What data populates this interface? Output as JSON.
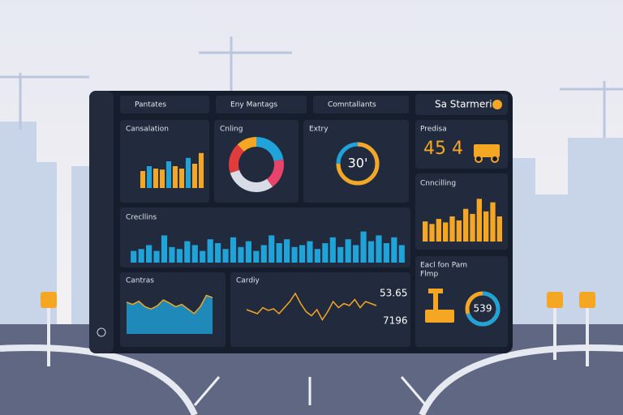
{
  "dropdowns": [
    "Pantates",
    "Eny Mantags",
    "Comntallants"
  ],
  "header": {
    "title": "Sa Starmeri..."
  },
  "panels": {
    "combo": {
      "title": "Cansalation",
      "values": [
        35,
        45,
        40,
        38,
        55,
        45,
        40,
        62,
        50,
        72
      ],
      "color": "#f5a623",
      "color2": "#1fa3d8"
    },
    "donut": {
      "title": "Cnling",
      "values": [
        22,
        18,
        30,
        18,
        12
      ],
      "colors": [
        "#1fa3d8",
        "#e8436b",
        "#d8dce6",
        "#e23b3b",
        "#f5a623"
      ]
    },
    "gauge": {
      "title": "Extry",
      "label": "30'",
      "progress": 75,
      "color": "#f5a623",
      "track": "#1fa3d8"
    },
    "kpi": {
      "title": "Predisa",
      "label": "45 4"
    },
    "orange": {
      "title": "Cnncilling",
      "values": [
        40,
        35,
        45,
        38,
        50,
        42,
        65,
        55,
        85,
        60,
        78,
        50
      ],
      "color": "#f5a623"
    },
    "blue": {
      "title": "Crecllins",
      "values": [
        30,
        35,
        45,
        30,
        70,
        40,
        35,
        55,
        45,
        30,
        60,
        50,
        35,
        65,
        40,
        55,
        30,
        45,
        70,
        50,
        60,
        40,
        45,
        55,
        35,
        50,
        65,
        40,
        60,
        45,
        80,
        55,
        70,
        50,
        65,
        45
      ],
      "color": "#1fa3d8"
    },
    "area": {
      "title": "Cantras",
      "values": [
        70,
        65,
        72,
        60,
        55,
        62,
        75,
        68,
        60,
        65,
        55,
        45,
        60,
        85,
        80
      ],
      "color": "#1fa3d8",
      "stroke": "#f5a623"
    },
    "line": {
      "title": "Cardiy",
      "label1": "53.65",
      "label2": "7196",
      "values": [
        40,
        35,
        30,
        45,
        38,
        42,
        30,
        45,
        60,
        80,
        55,
        35,
        25,
        40,
        15,
        35,
        60,
        45,
        55,
        50,
        65,
        45,
        60,
        55,
        50
      ],
      "color": "#f5a623",
      "color2": "#2bb3e8"
    },
    "ring": {
      "title": "Eacl fon Pam",
      "subtitle": "Flmp",
      "label": "539",
      "progress": 70,
      "color": "#1fa3d8",
      "track": "#f5a623"
    }
  }
}
